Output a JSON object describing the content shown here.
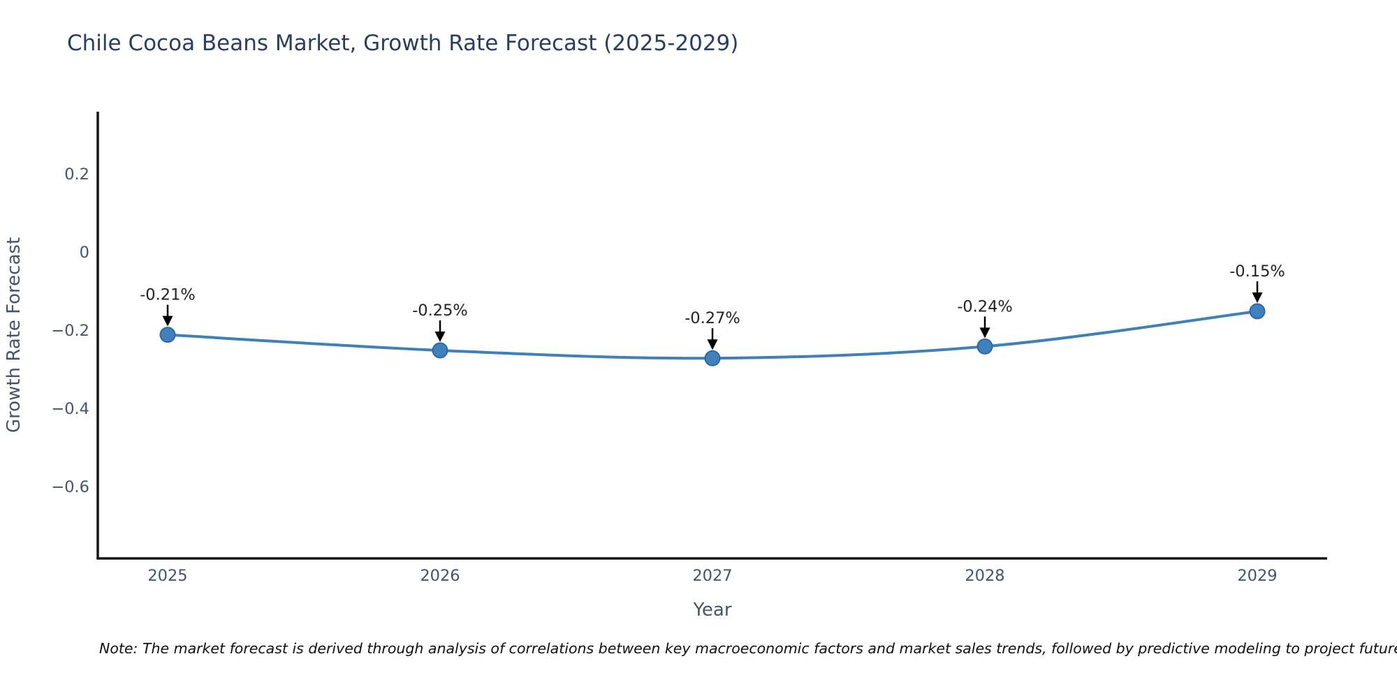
{
  "page": {
    "background": "#ffffff"
  },
  "chart_data": {
    "type": "line",
    "title": "Chile Cocoa Beans Market, Growth Rate Forecast (2025-2029)",
    "xlabel": "Year",
    "ylabel": "Growth Rate Forecast",
    "categories": [
      "2025",
      "2026",
      "2027",
      "2028",
      "2029"
    ],
    "values": [
      -0.21,
      -0.25,
      -0.27,
      -0.24,
      -0.15
    ],
    "point_labels": [
      "-0.21%",
      "-0.25%",
      "-0.27%",
      "-0.24%",
      "-0.15%"
    ],
    "y_ticks": [
      0.2,
      0,
      -0.2,
      -0.4,
      -0.6
    ],
    "y_tick_labels": [
      "0.2",
      "0",
      "−0.2",
      "−0.4",
      "−0.6"
    ],
    "ylim": [
      -0.78,
      0.36
    ],
    "grid": false,
    "legend": "none",
    "line_color": "#3f7fba",
    "marker_color": "#3f80bd",
    "marker_edge_color": "#2e699e",
    "annotation_text_color": "#222222",
    "annotation_arrow_color": "#000000",
    "title_color": "#2a3f5f",
    "axis_line_color": "#161616",
    "tick_label_color": "#44546d"
  },
  "note": {
    "text": "Note: The market forecast is derived through analysis of correlations between key macroeconomic factors and market sales trends, followed by predictive modeling to project future sales"
  }
}
